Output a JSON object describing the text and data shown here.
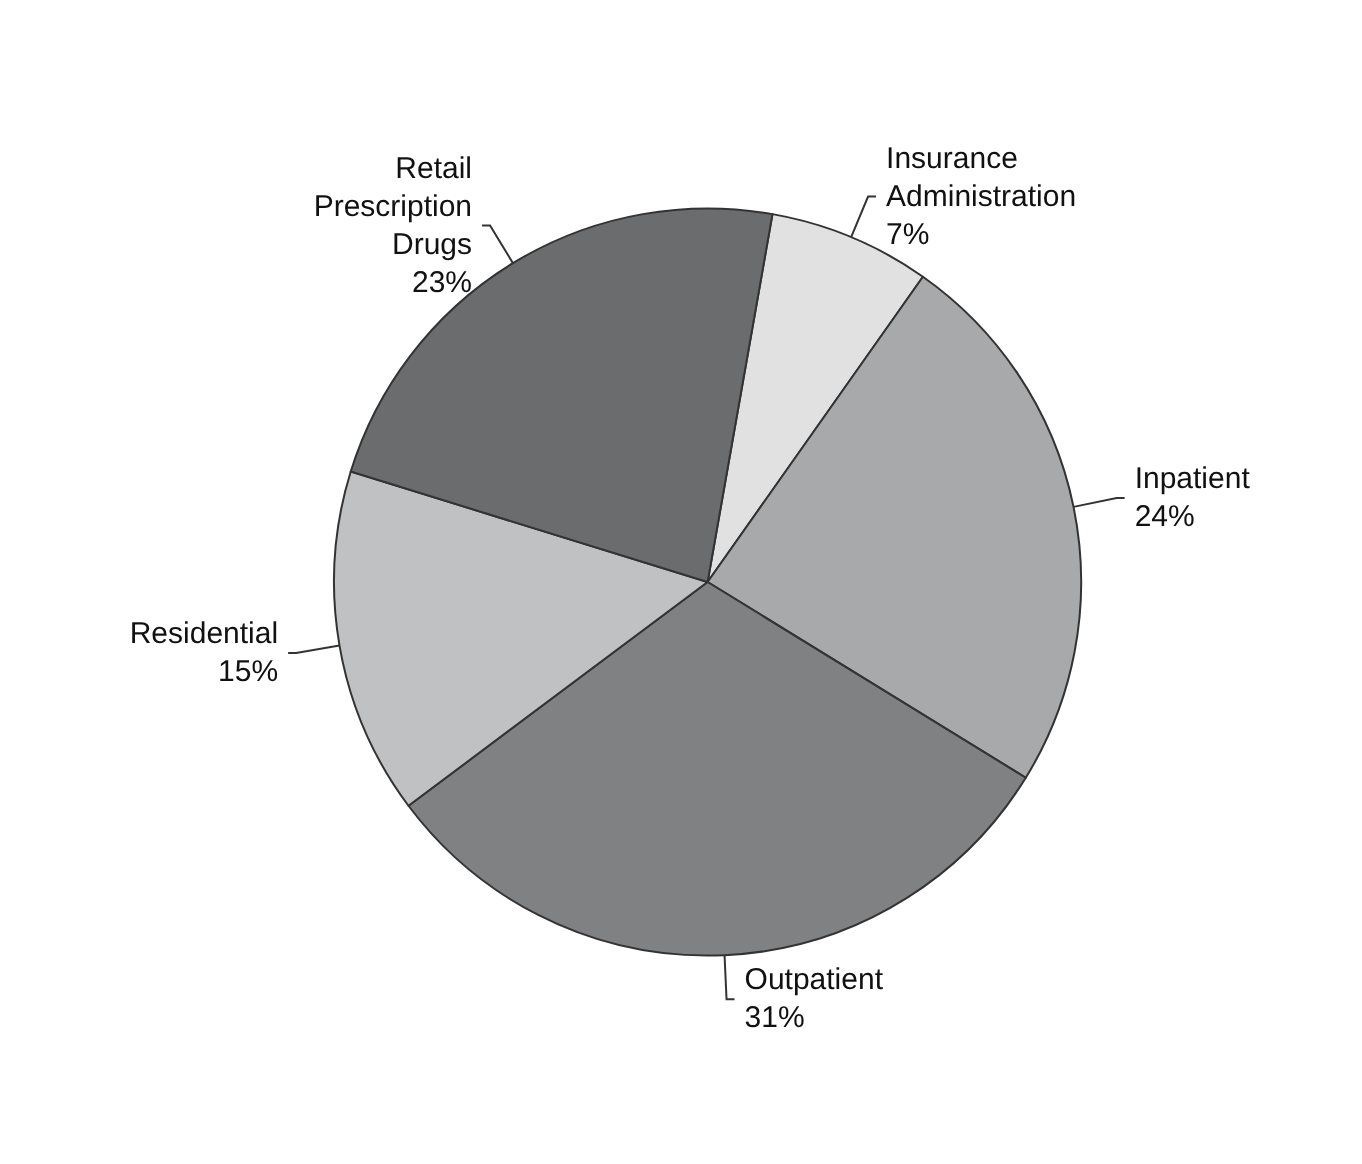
{
  "chart_data": {
    "type": "pie",
    "categories": [
      "Insurance Administration",
      "Inpatient",
      "Outpatient",
      "Residential",
      "Retail Prescription Drugs"
    ],
    "values": [
      7,
      24,
      31,
      15,
      23
    ],
    "value_labels": [
      "7%",
      "24%",
      "31%",
      "15%",
      "23%"
    ],
    "colors": [
      "#e1e1e2",
      "#a8a9ab",
      "#808183",
      "#c0c1c3",
      "#6b6c6e"
    ]
  }
}
